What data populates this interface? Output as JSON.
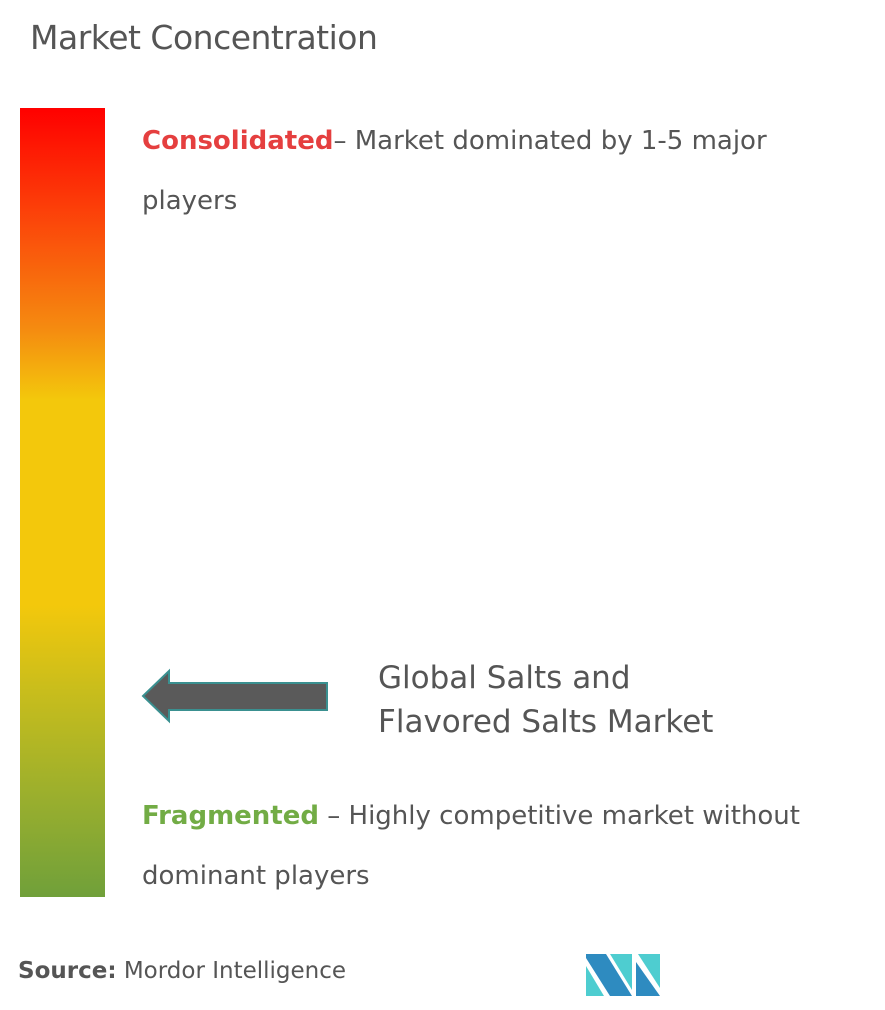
{
  "title": "Market Concentration",
  "gradient_colors": [
    "#ff0000",
    "#f58b10",
    "#f3c80c",
    "#70a03a"
  ],
  "consolidated": {
    "label": "Consolidated",
    "text": "– Market dominated by 1-5 major players",
    "color": "#e53f3f"
  },
  "fragmented": {
    "label": "Fragmented",
    "text": " – Highly competitive market without dominant players",
    "color": "#72ac45"
  },
  "market": {
    "line1": "Global Salts and",
    "line2": "Flavored Salts Market",
    "position": "near fragmented end"
  },
  "source": {
    "label": "Source:",
    "text": " Mordor Intelligence"
  },
  "logo": {
    "name": "mordor-intelligence-logo",
    "colors": [
      "#2e8bc0",
      "#4ecdd0"
    ]
  }
}
